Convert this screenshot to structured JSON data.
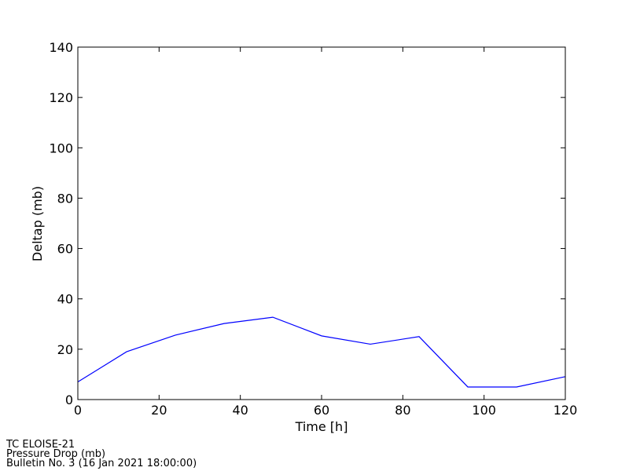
{
  "chart_data": {
    "type": "line",
    "xlabel": "Time [h]",
    "ylabel": "Deltap (mb)",
    "x": [
      0,
      12,
      24,
      36,
      48,
      60,
      72,
      84,
      96,
      108,
      120
    ],
    "series": [
      {
        "color": "#0000ff",
        "values": [
          7,
          19,
          25.6,
          30.2,
          32.7,
          25.3,
          22,
          25,
          5,
          5,
          9.1
        ]
      }
    ],
    "xlim": [
      0,
      120
    ],
    "xticks": [
      0,
      20,
      40,
      60,
      80,
      100,
      120
    ],
    "ylim": [
      0,
      140
    ],
    "yticks": [
      0,
      20,
      40,
      60,
      80,
      100,
      120,
      140
    ],
    "grid": false,
    "annotations": [
      "TC ELOISE-21",
      "Pressure Drop (mb)",
      "Bulletin No. 3 (16 Jan 2021  18:00:00)"
    ]
  }
}
